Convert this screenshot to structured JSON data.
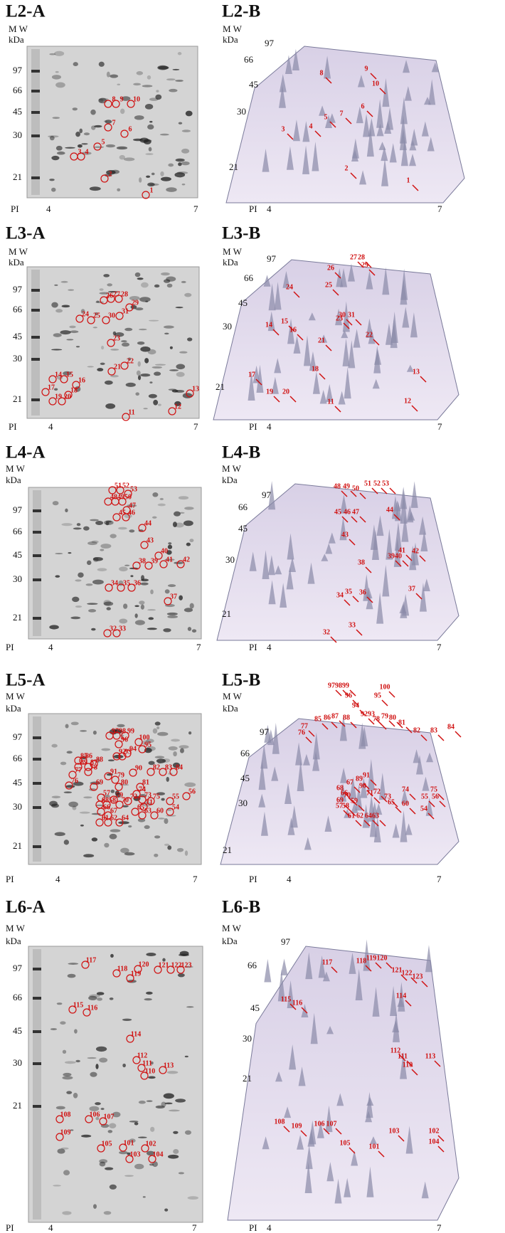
{
  "panels": [
    {
      "label": "L2-A",
      "mw": [
        "M W",
        "kDa"
      ],
      "yticks": [
        "97",
        "66",
        "45",
        "30",
        "21"
      ],
      "x": [
        "PI",
        "4",
        "7"
      ],
      "spots": [
        "1",
        "2",
        "3",
        "4",
        "5",
        "6",
        "7",
        "8",
        "9",
        "10"
      ]
    },
    {
      "label": "L2-B",
      "mw": [
        "M W",
        "kDa"
      ],
      "yticks": [
        "97",
        "66",
        "45",
        "30",
        "21"
      ],
      "x": [
        "PI",
        "4",
        "7"
      ],
      "spots": [
        "9",
        "8",
        "10",
        "6",
        "7",
        "5",
        "4",
        "3",
        "2",
        "1"
      ]
    },
    {
      "label": "L3-A",
      "mw": [
        "M W",
        "kDa"
      ],
      "yticks": [
        "97",
        "66",
        "45",
        "30",
        "21"
      ],
      "x": [
        "PI",
        "4",
        "7"
      ],
      "spots": [
        "26",
        "27",
        "28",
        "29",
        "30",
        "31",
        "24",
        "25",
        "23",
        "21",
        "22",
        "14",
        "15",
        "16",
        "17",
        "18",
        "19",
        "20",
        "13",
        "12",
        "11"
      ]
    },
    {
      "label": "L3-B",
      "mw": [
        "M W",
        "kDa"
      ],
      "yticks": [
        "97",
        "66",
        "45",
        "30",
        "21"
      ],
      "x": [
        "PI",
        "4",
        "7"
      ],
      "spots": [
        "27",
        "28",
        "29",
        "26",
        "24",
        "25",
        "30",
        "31",
        "23",
        "21",
        "22",
        "14",
        "15",
        "16",
        "17",
        "18",
        "19",
        "20",
        "13",
        "11",
        "12"
      ]
    },
    {
      "label": "L4-A",
      "mw": [
        "M W",
        "kDa"
      ],
      "yticks": [
        "97",
        "66",
        "45",
        "30",
        "21"
      ],
      "x": [
        "PI",
        "4",
        "7"
      ],
      "spots": [
        "51",
        "52",
        "53",
        "48",
        "49",
        "50",
        "47",
        "45",
        "46",
        "44",
        "43",
        "40",
        "41",
        "42",
        "38",
        "39",
        "34",
        "35",
        "36",
        "37",
        "32",
        "33"
      ]
    },
    {
      "label": "L4-B",
      "mw": [
        "M W",
        "kDa"
      ],
      "yticks": [
        "97",
        "66",
        "45",
        "30",
        "21"
      ],
      "x": [
        "PI",
        "4",
        "7"
      ],
      "spots": [
        "48",
        "49",
        "50",
        "51",
        "52",
        "53",
        "45",
        "46",
        "47",
        "44",
        "43",
        "38",
        "39",
        "40",
        "41",
        "42",
        "37",
        "34",
        "35",
        "36",
        "32",
        "33"
      ]
    },
    {
      "label": "L5-A",
      "mw": [
        "M W",
        "kDa"
      ],
      "yticks": [
        "97",
        "66",
        "45",
        "30",
        "21"
      ],
      "x": [
        "PI",
        "4",
        "7"
      ],
      "spots": [
        "54",
        "55",
        "56",
        "57",
        "58",
        "59",
        "60",
        "61",
        "62",
        "63",
        "64",
        "65",
        "66",
        "67",
        "68",
        "69",
        "70",
        "71",
        "72",
        "73",
        "74",
        "75",
        "76",
        "77",
        "78",
        "79",
        "80",
        "81",
        "82",
        "83",
        "84",
        "85",
        "86",
        "87",
        "88",
        "89",
        "90",
        "91",
        "92",
        "93",
        "94",
        "95",
        "96",
        "97",
        "98",
        "99",
        "100"
      ]
    },
    {
      "label": "L5-B",
      "mw": [
        "M W",
        "kDa"
      ],
      "yticks": [
        "97",
        "66",
        "45",
        "30",
        "21"
      ],
      "x": [
        "PI",
        "4",
        "7"
      ],
      "spots": [
        "54",
        "55",
        "56",
        "57",
        "58",
        "59",
        "60",
        "61",
        "62",
        "63",
        "64",
        "65",
        "66",
        "67",
        "68",
        "69",
        "70",
        "71",
        "72",
        "73",
        "74",
        "75",
        "76",
        "77",
        "78",
        "79",
        "80",
        "81",
        "82",
        "83",
        "84",
        "85",
        "86",
        "87",
        "88",
        "89",
        "90",
        "91",
        "92",
        "93",
        "94",
        "95",
        "96",
        "97",
        "98",
        "99",
        "100"
      ]
    },
    {
      "label": "L6-A",
      "mw": [
        "M W",
        "kDa"
      ],
      "yticks": [
        "97",
        "66",
        "45",
        "30",
        "21"
      ],
      "x": [
        "PI",
        "4",
        "7"
      ],
      "spots": [
        "117",
        "118",
        "119",
        "120",
        "121",
        "122",
        "123",
        "115",
        "116",
        "114",
        "112",
        "111",
        "110",
        "113",
        "108",
        "109",
        "106",
        "107",
        "105",
        "101",
        "102",
        "103",
        "104"
      ]
    },
    {
      "label": "L6-B",
      "mw": [
        "M W",
        "kDa"
      ],
      "yticks": [
        "97",
        "66",
        "45",
        "30",
        "21"
      ],
      "x": [
        "PI",
        "4",
        "7"
      ],
      "spots": [
        "117",
        "118",
        "119",
        "120",
        "121",
        "122",
        "123",
        "115",
        "116",
        "114",
        "112",
        "111",
        "110",
        "113",
        "108",
        "109",
        "106",
        "107",
        "105",
        "101",
        "103",
        "102",
        "104"
      ]
    }
  ]
}
